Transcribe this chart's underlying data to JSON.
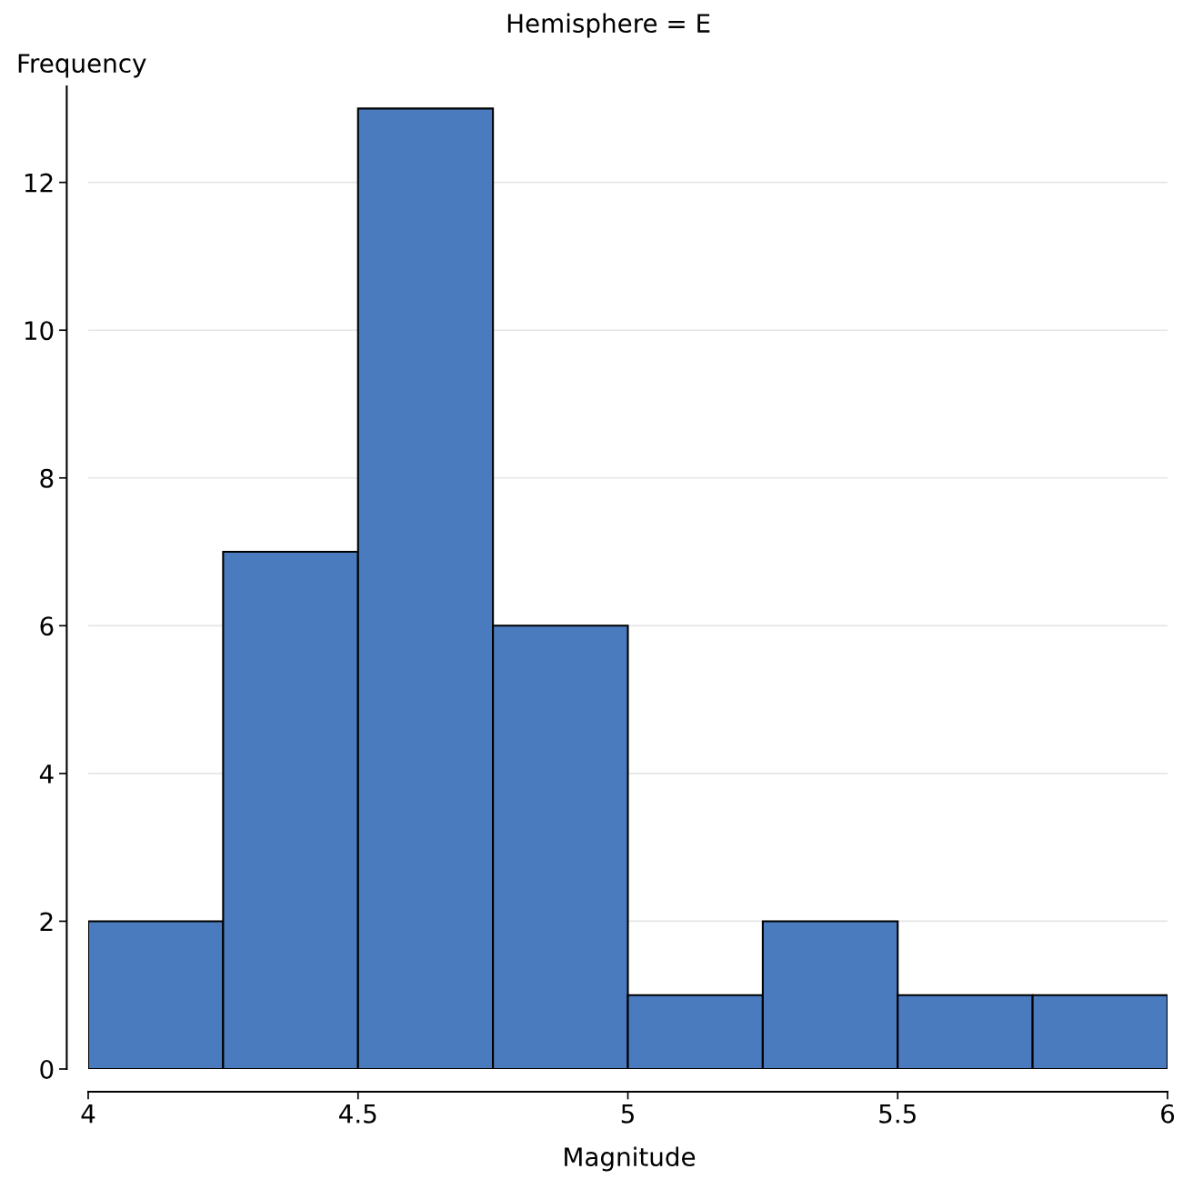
{
  "chart_data": {
    "type": "histogram",
    "title": "Hemisphere = E",
    "xlabel": "Magnitude",
    "ylabel": "Frequency",
    "bins": [
      4,
      4.25,
      4.5,
      4.75,
      5,
      5.25,
      5.5,
      5.75,
      6
    ],
    "values": [
      2,
      7,
      13,
      6,
      1,
      2,
      1,
      1
    ],
    "color": "#4a7bbf",
    "xlim": [
      4,
      6
    ],
    "xticks": [
      4,
      4.5,
      5,
      5.5,
      6
    ],
    "ylim": [
      0,
      13.3
    ],
    "yticks": [
      0,
      2,
      4,
      6,
      8,
      10,
      12
    ],
    "grid": "y"
  }
}
